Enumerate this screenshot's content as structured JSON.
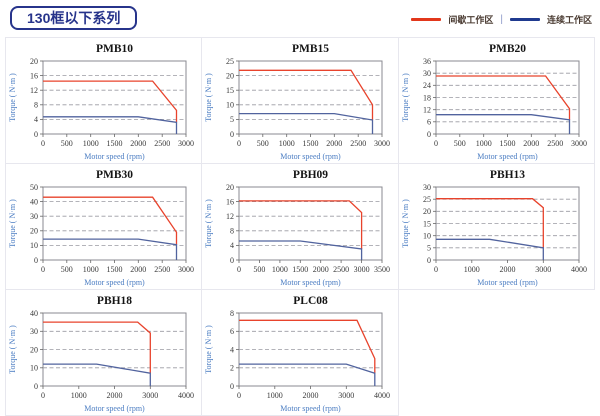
{
  "header": {
    "title": "130框以下系列",
    "accent_color": "#27348b",
    "legend_separator": "|",
    "legend": [
      {
        "label": "间歇工作区",
        "color": "#e2371b"
      },
      {
        "label": "连续工作区",
        "color": "#1f3a8f"
      }
    ]
  },
  "colors": {
    "intermittent_line": "#e8432c",
    "continuous_line": "#51639e",
    "grid_line": "#9a9aa2",
    "cell_border": "#e7e7ee"
  },
  "chart_data": [
    {
      "type": "line",
      "title": "PMB10",
      "xlabel": "Motor speed (rpm)",
      "ylabel": "Torque ( N·m )",
      "xlim": [
        0,
        3000
      ],
      "xticks": [
        0,
        500,
        1000,
        1500,
        2000,
        2500,
        3000
      ],
      "ylim": [
        0,
        20
      ],
      "yticks": [
        0,
        4,
        8,
        12,
        16,
        20
      ],
      "grid": true,
      "legend_position": "top-right-of-page",
      "series": [
        {
          "name": "间歇工作区",
          "key": "intermittent",
          "color": "#e8432c",
          "points": [
            [
              0,
              14.5
            ],
            [
              2300,
              14.5
            ],
            [
              2800,
              6.5
            ],
            [
              2800,
              3.2
            ]
          ]
        },
        {
          "name": "连续工作区",
          "key": "continuous",
          "color": "#51639e",
          "points": [
            [
              0,
              4.7
            ],
            [
              2000,
              4.7
            ],
            [
              2800,
              3.2
            ],
            [
              2800,
              0
            ]
          ]
        }
      ]
    },
    {
      "type": "line",
      "title": "PMB15",
      "xlabel": "Motor speed (rpm)",
      "ylabel": "Torque ( N·m )",
      "xlim": [
        0,
        3000
      ],
      "xticks": [
        0,
        500,
        1000,
        1500,
        2000,
        2500,
        3000
      ],
      "ylim": [
        0,
        25
      ],
      "yticks": [
        0,
        5,
        10,
        15,
        20,
        25
      ],
      "grid": true,
      "series": [
        {
          "name": "间歇工作区",
          "key": "intermittent",
          "color": "#e8432c",
          "points": [
            [
              0,
              21.8
            ],
            [
              2350,
              21.8
            ],
            [
              2800,
              10
            ],
            [
              2800,
              4.8
            ]
          ]
        },
        {
          "name": "连续工作区",
          "key": "continuous",
          "color": "#51639e",
          "points": [
            [
              0,
              7
            ],
            [
              2000,
              7
            ],
            [
              2800,
              4.8
            ],
            [
              2800,
              0
            ]
          ]
        }
      ]
    },
    {
      "type": "line",
      "title": "PMB20",
      "xlabel": "Motor speed (rpm)",
      "ylabel": "Torque ( N·m )",
      "xlim": [
        0,
        3000
      ],
      "xticks": [
        0,
        500,
        1000,
        1500,
        2000,
        2500,
        3000
      ],
      "ylim": [
        0,
        36
      ],
      "yticks": [
        0,
        6,
        12,
        18,
        24,
        30,
        36
      ],
      "grid": true,
      "series": [
        {
          "name": "间歇工作区",
          "key": "intermittent",
          "color": "#e8432c",
          "points": [
            [
              0,
              28.6
            ],
            [
              2300,
              28.6
            ],
            [
              2800,
              12.5
            ],
            [
              2800,
              7
            ]
          ]
        },
        {
          "name": "连续工作区",
          "key": "continuous",
          "color": "#51639e",
          "points": [
            [
              0,
              9.5
            ],
            [
              2000,
              9.5
            ],
            [
              2800,
              7
            ],
            [
              2800,
              0
            ]
          ]
        }
      ]
    },
    {
      "type": "line",
      "title": "PMB30",
      "xlabel": "Motor speed (rpm)",
      "ylabel": "Torque ( N·m )",
      "xlim": [
        0,
        3000
      ],
      "xticks": [
        0,
        500,
        1000,
        1500,
        2000,
        2500,
        3000
      ],
      "ylim": [
        0,
        50
      ],
      "yticks": [
        0,
        10,
        20,
        30,
        40,
        50
      ],
      "grid": true,
      "series": [
        {
          "name": "间歇工作区",
          "key": "intermittent",
          "color": "#e8432c",
          "points": [
            [
              0,
              43
            ],
            [
              2300,
              43
            ],
            [
              2800,
              19
            ],
            [
              2800,
              10.5
            ]
          ]
        },
        {
          "name": "连续工作区",
          "key": "continuous",
          "color": "#51639e",
          "points": [
            [
              0,
              14.3
            ],
            [
              2000,
              14.3
            ],
            [
              2800,
              10.5
            ],
            [
              2800,
              0
            ]
          ]
        }
      ]
    },
    {
      "type": "line",
      "title": "PBH09",
      "xlabel": "Motor speed (rpm)",
      "ylabel": "Torque ( N·m )",
      "xlim": [
        0,
        3500
      ],
      "xticks": [
        0,
        500,
        1000,
        1500,
        2000,
        2500,
        3000,
        3500
      ],
      "ylim": [
        0,
        20
      ],
      "yticks": [
        0,
        4,
        8,
        12,
        16,
        20
      ],
      "grid": true,
      "series": [
        {
          "name": "间歇工作区",
          "key": "intermittent",
          "color": "#e8432c",
          "points": [
            [
              0,
              16.2
            ],
            [
              2700,
              16.2
            ],
            [
              3000,
              13
            ],
            [
              3000,
              3
            ]
          ]
        },
        {
          "name": "连续工作区",
          "key": "continuous",
          "color": "#51639e",
          "points": [
            [
              0,
              5.2
            ],
            [
              1500,
              5.2
            ],
            [
              3000,
              3
            ],
            [
              3000,
              0
            ]
          ]
        }
      ]
    },
    {
      "type": "line",
      "title": "PBH13",
      "xlabel": "Motor speed (rpm)",
      "ylabel": "Torque ( N·m )",
      "xlim": [
        0,
        4000
      ],
      "xticks": [
        0,
        1000,
        2000,
        3000,
        4000
      ],
      "ylim": [
        0,
        30
      ],
      "yticks": [
        0,
        5,
        10,
        15,
        20,
        25,
        30
      ],
      "grid": true,
      "series": [
        {
          "name": "间歇工作区",
          "key": "intermittent",
          "color": "#e8432c",
          "points": [
            [
              0,
              25.2
            ],
            [
              2700,
              25.2
            ],
            [
              3000,
              21.5
            ],
            [
              3000,
              5
            ]
          ]
        },
        {
          "name": "连续工作区",
          "key": "continuous",
          "color": "#51639e",
          "points": [
            [
              0,
              8.5
            ],
            [
              1500,
              8.5
            ],
            [
              3000,
              5
            ],
            [
              3000,
              0
            ]
          ]
        }
      ]
    },
    {
      "type": "line",
      "title": "PBH18",
      "xlabel": "Motor speed (rpm)",
      "ylabel": "Torque ( N·m )",
      "xlim": [
        0,
        4000
      ],
      "xticks": [
        0,
        1000,
        2000,
        3000,
        4000
      ],
      "ylim": [
        0,
        40
      ],
      "yticks": [
        0,
        10,
        20,
        30,
        40
      ],
      "grid": true,
      "series": [
        {
          "name": "间歇工作区",
          "key": "intermittent",
          "color": "#e8432c",
          "points": [
            [
              0,
              35
            ],
            [
              2650,
              35
            ],
            [
              3000,
              29
            ],
            [
              3000,
              7
            ]
          ]
        },
        {
          "name": "连续工作区",
          "key": "continuous",
          "color": "#51639e",
          "points": [
            [
              0,
              12
            ],
            [
              1500,
              12
            ],
            [
              3000,
              7
            ],
            [
              3000,
              0
            ]
          ]
        }
      ]
    },
    {
      "type": "line",
      "title": "PLC08",
      "xlabel": "Motor speed (rpm)",
      "ylabel": "Torque ( N·m )",
      "xlim": [
        0,
        4000
      ],
      "xticks": [
        0,
        1000,
        2000,
        3000,
        4000
      ],
      "ylim": [
        0,
        8
      ],
      "yticks": [
        0,
        2,
        4,
        6,
        8
      ],
      "grid": true,
      "series": [
        {
          "name": "间歇工作区",
          "key": "intermittent",
          "color": "#e8432c",
          "points": [
            [
              0,
              7.2
            ],
            [
              3300,
              7.2
            ],
            [
              3800,
              3
            ],
            [
              3800,
              1.4
            ]
          ]
        },
        {
          "name": "连续工作区",
          "key": "continuous",
          "color": "#51639e",
          "points": [
            [
              0,
              2.4
            ],
            [
              3000,
              2.4
            ],
            [
              3800,
              1.4
            ],
            [
              3800,
              0
            ]
          ]
        }
      ]
    }
  ]
}
